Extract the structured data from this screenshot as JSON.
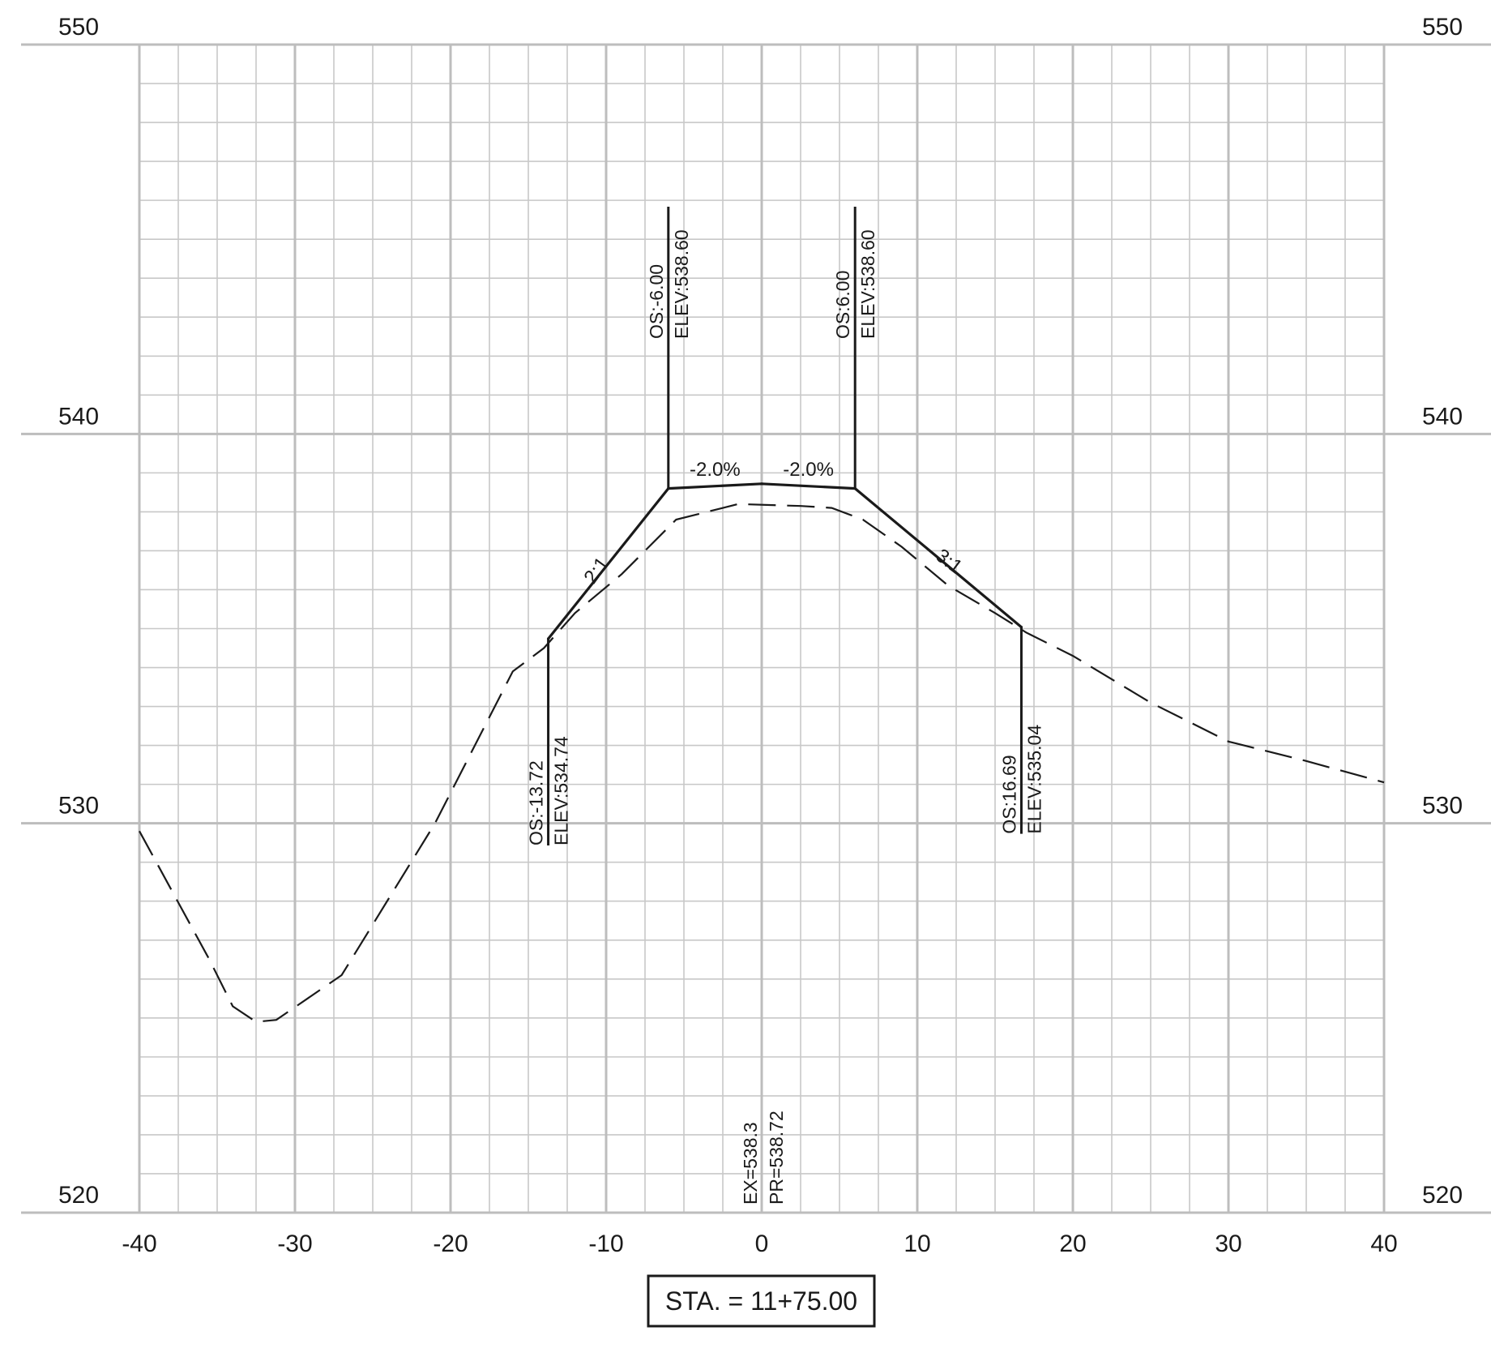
{
  "chart_data": {
    "type": "line",
    "title": "",
    "xlabel": "",
    "ylabel": "",
    "xlim": [
      -40,
      40
    ],
    "ylim": [
      520,
      550
    ],
    "grid": true,
    "x_ticks": [
      -40,
      -30,
      -20,
      -10,
      0,
      10,
      20,
      30,
      40
    ],
    "y_ticks": [
      520,
      530,
      540,
      550
    ],
    "x_tick_labels": [
      "-40",
      "-30",
      "-20",
      "-10",
      "0",
      "10",
      "20",
      "30",
      "40"
    ],
    "y_tick_labels": [
      "520",
      "530",
      "540",
      "550"
    ],
    "series": [
      {
        "style": "solid",
        "x": [
          -13.72,
          -6.0,
          0.0,
          6.0,
          16.69
        ],
        "y": [
          534.74,
          538.6,
          538.72,
          538.6,
          535.04
        ]
      },
      {
        "style": "dashed",
        "x": [
          -40,
          -35.5,
          -34,
          -32.5,
          -31.2,
          -27,
          -21,
          -16,
          -14,
          -12,
          -9,
          -5.5,
          -1.5,
          2.5,
          4.5,
          6.5,
          9,
          12,
          15,
          17,
          20,
          25,
          30,
          35,
          40
        ],
        "y": [
          529.8,
          526.5,
          525.3,
          524.9,
          524.95,
          526.1,
          530.0,
          533.9,
          534.5,
          535.4,
          536.4,
          537.8,
          538.2,
          538.15,
          538.1,
          537.8,
          537.1,
          536.1,
          535.4,
          534.9,
          534.3,
          533.1,
          532.1,
          531.6,
          531.05
        ]
      }
    ],
    "grade_labels": [
      {
        "x": -3.0,
        "text": "-2.0%"
      },
      {
        "x": 3.0,
        "text": "-2.0%"
      }
    ],
    "slope_labels": [
      {
        "x": -10.3,
        "y": 536.4,
        "text": "2:1"
      },
      {
        "x": 11.8,
        "y": 536.6,
        "text": "3:1"
      }
    ],
    "annotations": [
      {
        "x": -6.0,
        "y": 538.6,
        "direction": "up",
        "os": "OS:-6.00",
        "elev": "ELEV:538.60"
      },
      {
        "x": 6.0,
        "y": 538.6,
        "direction": "up",
        "os": "OS:6.00",
        "elev": "ELEV:538.60"
      },
      {
        "x": -13.72,
        "y": 534.74,
        "direction": "down",
        "os": "OS:-13.72",
        "elev": "ELEV:534.74"
      },
      {
        "x": 16.69,
        "y": 535.04,
        "direction": "down",
        "os": "OS:16.69",
        "elev": "ELEV:535.04"
      }
    ],
    "centerline": {
      "ex": "EX=538.3",
      "pr": "PR=538.72"
    },
    "station": "STA. = 11+75.00"
  }
}
